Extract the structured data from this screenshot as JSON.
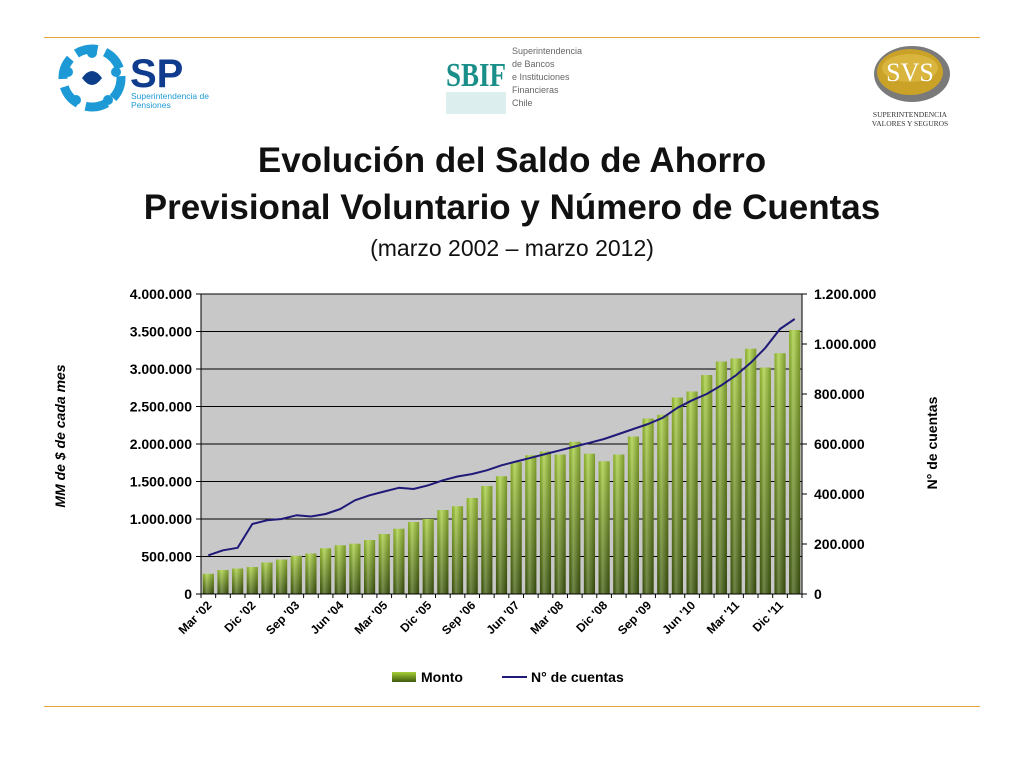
{
  "logos": {
    "sp": {
      "mark": "SP",
      "line1": "Superintendencia de",
      "line2": "Pensiones"
    },
    "sbif": {
      "mark": "SBIF",
      "lines": [
        "Superintendencia",
        "de Bancos",
        "e Instituciones",
        "Financieras",
        "Chile"
      ]
    },
    "svs": {
      "mark": "SVS",
      "line1": "SUPERINTENDENCIA",
      "line2": "VALORES Y SEGUROS"
    }
  },
  "title": {
    "line1": "Evolución del Saldo de Ahorro",
    "line2": "Previsional Voluntario y Número de Cuentas",
    "subtitle": "(marzo 2002 – marzo 2012)"
  },
  "colors": {
    "rule": "#e8a43a",
    "plot_bg": "#c8c8c8",
    "bar": "#7aa51f",
    "line": "#1f1a78"
  },
  "chart_data": {
    "type": "bar",
    "ylabel": "MM de $ de cada mes",
    "y2label": "N° de cuentas",
    "ylim": [
      0,
      4000000
    ],
    "y2lim": [
      0,
      1200000
    ],
    "yticks": [
      "0",
      "500.000",
      "1.000.000",
      "1.500.000",
      "2.000.000",
      "2.500.000",
      "3.000.000",
      "3.500.000",
      "4.000.000"
    ],
    "y2ticks": [
      "0",
      "200.000",
      "400.000",
      "600.000",
      "800.000",
      "1.000.000",
      "1.200.000"
    ],
    "xtick_labels": [
      "Mar '02",
      "Dic '02",
      "Sep '03",
      "Jun '04",
      "Mar '05",
      "Dic '05",
      "Sep '06",
      "Jun '07",
      "Mar '08",
      "Dic '08",
      "Sep '09",
      "Jun '10",
      "Mar '11",
      "Dic '11"
    ],
    "xtick_every": 3,
    "legend_position": "bottom",
    "series": [
      {
        "name": "Monto",
        "type": "bar",
        "values": [
          270000,
          320000,
          340000,
          360000,
          420000,
          460000,
          510000,
          540000,
          610000,
          650000,
          670000,
          720000,
          800000,
          870000,
          960000,
          1000000,
          1120000,
          1170000,
          1280000,
          1440000,
          1570000,
          1760000,
          1850000,
          1900000,
          1860000,
          2030000,
          1870000,
          1770000,
          1860000,
          2100000,
          2340000,
          2390000,
          2620000,
          2700000,
          2920000,
          3100000,
          3140000,
          3270000,
          3020000,
          3210000,
          3520000
        ]
      },
      {
        "name": "N° de cuentas",
        "type": "line",
        "values": [
          155000,
          175000,
          185000,
          280000,
          295000,
          300000,
          315000,
          310000,
          320000,
          340000,
          375000,
          395000,
          410000,
          425000,
          420000,
          435000,
          455000,
          470000,
          480000,
          495000,
          515000,
          530000,
          545000,
          560000,
          575000,
          590000,
          605000,
          620000,
          640000,
          660000,
          680000,
          705000,
          745000,
          775000,
          800000,
          835000,
          875000,
          925000,
          985000,
          1060000,
          1100000
        ]
      }
    ]
  }
}
